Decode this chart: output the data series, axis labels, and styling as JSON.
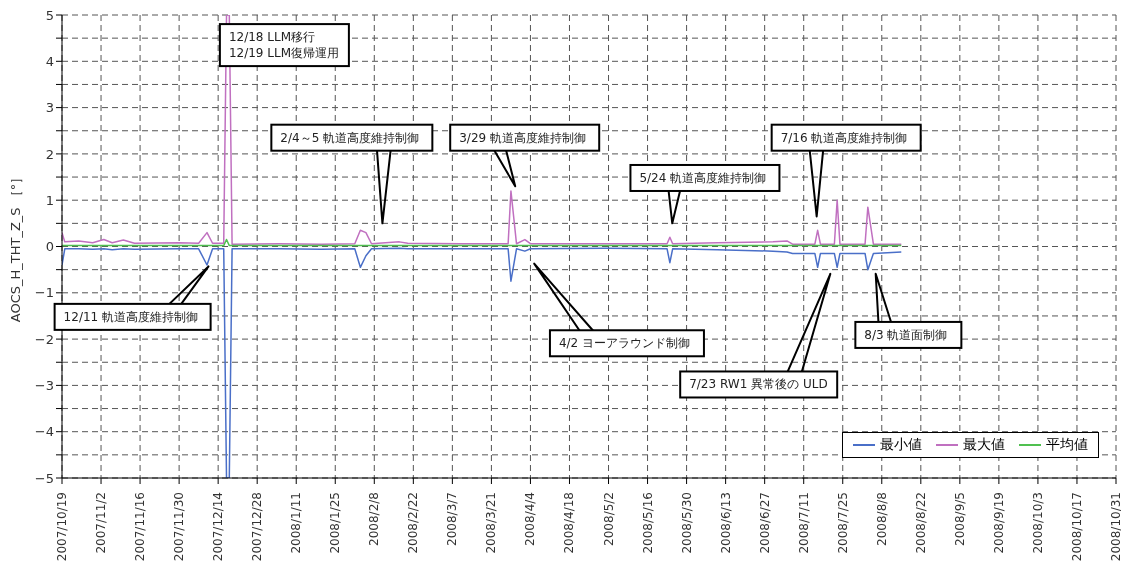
{
  "chart_data": {
    "type": "line",
    "ylabel": "AOCS_H_THT_Z_S ［°］",
    "x": [
      "2007-10-19",
      "2007-10-20",
      "2007-10-25",
      "2007-10-30",
      "2007-11-03",
      "2007-11-06",
      "2007-11-10",
      "2007-11-14",
      "2007-11-30",
      "2007-12-07",
      "2007-12-10",
      "2007-12-12",
      "2007-12-16",
      "2007-12-17",
      "2007-12-18",
      "2007-12-19",
      "2008-01-05",
      "2008-01-20",
      "2008-02-01",
      "2008-02-03",
      "2008-02-05",
      "2008-02-07",
      "2008-02-17",
      "2008-02-20",
      "2008-03-10",
      "2008-03-27",
      "2008-03-28",
      "2008-03-30",
      "2008-04-02",
      "2008-04-04",
      "2008-05-01",
      "2008-05-23",
      "2008-05-24",
      "2008-05-25",
      "2008-06-10",
      "2008-06-30",
      "2008-07-05",
      "2008-07-07",
      "2008-07-15",
      "2008-07-16",
      "2008-07-17",
      "2008-07-22",
      "2008-07-23",
      "2008-07-24",
      "2008-08-02",
      "2008-08-03",
      "2008-08-05",
      "2008-08-15"
    ],
    "series": [
      {
        "name": "最小値",
        "color": "#4a6fc8",
        "values": [
          -0.4,
          -0.05,
          -0.05,
          -0.06,
          -0.05,
          -0.07,
          -0.05,
          -0.06,
          -0.05,
          -0.05,
          -0.4,
          -0.05,
          -0.05,
          -5,
          -5,
          -0.05,
          -0.05,
          -0.06,
          -0.05,
          -0.45,
          -0.2,
          -0.05,
          -0.04,
          -0.05,
          -0.05,
          -0.05,
          -0.75,
          -0.05,
          -0.1,
          -0.05,
          -0.04,
          -0.05,
          -0.35,
          -0.05,
          -0.07,
          -0.1,
          -0.12,
          -0.15,
          -0.15,
          -0.45,
          -0.15,
          -0.15,
          -0.45,
          -0.15,
          -0.15,
          -0.5,
          -0.15,
          -0.12
        ]
      },
      {
        "name": "最大値",
        "color": "#c070c0",
        "values": [
          0.3,
          0.1,
          0.12,
          0.08,
          0.15,
          0.08,
          0.14,
          0.07,
          0.08,
          0.07,
          0.3,
          0.07,
          0.07,
          5,
          5,
          0.05,
          0.06,
          0.05,
          0.06,
          0.35,
          0.3,
          0.06,
          0.1,
          0.07,
          0.06,
          0.06,
          1.2,
          0.06,
          0.15,
          0.06,
          0.06,
          0.06,
          0.2,
          0.06,
          0.08,
          0.1,
          0.12,
          0.05,
          0.05,
          0.35,
          0.05,
          0.05,
          1.0,
          0.05,
          0.05,
          0.85,
          0.05,
          0.05
        ]
      },
      {
        "name": "平均値",
        "color": "#50c050",
        "values": [
          0.02,
          0.02,
          0.02,
          0.02,
          0.02,
          0.02,
          0.02,
          0.02,
          0.02,
          0.02,
          0.02,
          0.02,
          0.02,
          0.15,
          0.02,
          0.02,
          0.02,
          0.02,
          0.02,
          0.02,
          0.02,
          0.02,
          0.02,
          0.02,
          0.02,
          0.02,
          0.02,
          0.02,
          0.02,
          0.02,
          0.02,
          0.02,
          0.02,
          0.02,
          0.02,
          0.02,
          0.02,
          0.02,
          0.02,
          0.02,
          0.02,
          0.02,
          0.02,
          0.02,
          0.02,
          0.02,
          0.02,
          0.02
        ]
      }
    ],
    "xlim": [
      "2007-10-19",
      "2008-10-31"
    ],
    "xticks": [
      {
        "value": "2007-10-19",
        "label": "2007/10/19"
      },
      {
        "value": "2007-11-02",
        "label": "2007/11/2"
      },
      {
        "value": "2007-11-16",
        "label": "2007/11/16"
      },
      {
        "value": "2007-11-30",
        "label": "2007/11/30"
      },
      {
        "value": "2007-12-14",
        "label": "2007/12/14"
      },
      {
        "value": "2007-12-28",
        "label": "2007/12/28"
      },
      {
        "value": "2008-01-11",
        "label": "2008/1/11"
      },
      {
        "value": "2008-01-25",
        "label": "2008/1/25"
      },
      {
        "value": "2008-02-08",
        "label": "2008/2/8"
      },
      {
        "value": "2008-02-22",
        "label": "2008/2/22"
      },
      {
        "value": "2008-03-07",
        "label": "2008/3/7"
      },
      {
        "value": "2008-03-21",
        "label": "2008/3/21"
      },
      {
        "value": "2008-04-04",
        "label": "2008/4/4"
      },
      {
        "value": "2008-04-18",
        "label": "2008/4/18"
      },
      {
        "value": "2008-05-02",
        "label": "2008/5/2"
      },
      {
        "value": "2008-05-16",
        "label": "2008/5/16"
      },
      {
        "value": "2008-05-30",
        "label": "2008/5/30"
      },
      {
        "value": "2008-06-13",
        "label": "2008/6/13"
      },
      {
        "value": "2008-06-27",
        "label": "2008/6/27"
      },
      {
        "value": "2008-07-11",
        "label": "2008/7/11"
      },
      {
        "value": "2008-07-25",
        "label": "2008/7/25"
      },
      {
        "value": "2008-08-08",
        "label": "2008/8/8"
      },
      {
        "value": "2008-08-22",
        "label": "2008/8/22"
      },
      {
        "value": "2008-09-05",
        "label": "2008/9/5"
      },
      {
        "value": "2008-09-19",
        "label": "2008/9/19"
      },
      {
        "value": "2008-10-03",
        "label": "2008/10/3"
      },
      {
        "value": "2008-10-17",
        "label": "2008/10/17"
      },
      {
        "value": "2008-10-31",
        "label": "2008/10/31"
      }
    ],
    "ylim": [
      -5,
      5
    ],
    "yticks": [
      -5,
      {
        "value": -4.5,
        "label": null
      },
      -4,
      {
        "value": -3.5,
        "label": null
      },
      -3,
      {
        "value": -2.5,
        "label": null
      },
      -2,
      {
        "value": -1.5,
        "label": null
      },
      -1,
      {
        "value": -0.5,
        "label": null
      },
      0,
      {
        "value": 0.5,
        "label": null
      },
      1,
      {
        "value": 1.5,
        "label": null
      },
      2,
      {
        "value": 2.5,
        "label": null
      },
      3,
      {
        "value": 3.5,
        "label": null
      },
      4,
      {
        "value": 4.5,
        "label": null
      },
      5
    ],
    "grid": true,
    "legend": "bottom right",
    "marker": "none",
    "line_style": "solid",
    "annotations": [
      "12/18 LLM移行\n12/19 LLM復帰運用",
      "2/4～5 軌道高度維持制御",
      "3/29 軌道高度維持制御",
      "5/24 軌道高度維持制御",
      "7/16 軌道高度維持制御",
      "12/11 軌道高度維持制御",
      "4/2 ヨーアラウンド制御",
      "7/23 RW1 異常後の ULD",
      "8/3 軌道面制御"
    ]
  }
}
